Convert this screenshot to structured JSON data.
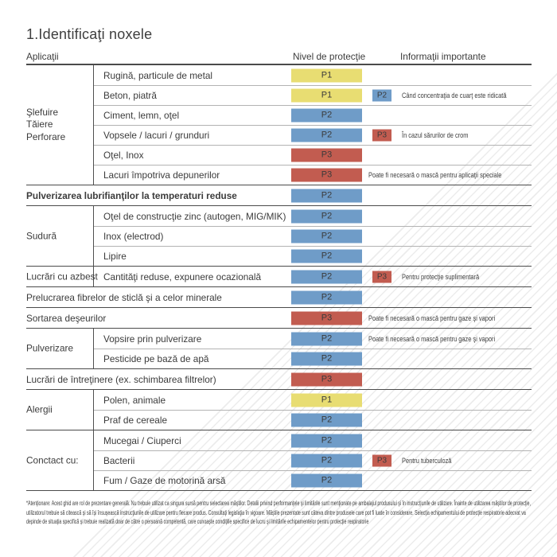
{
  "page": {
    "title": "1.Identificaţi noxele"
  },
  "columns": {
    "applications": "Aplicaţii",
    "protection": "Nivel de protecţie",
    "info": "Informaţii importante"
  },
  "colors": {
    "p1": "#e8dd72",
    "p2": "#6f9cc8",
    "p3": "#c25c50",
    "rule_heavy": "#4b4b4b",
    "rule_light": "#b3b3b3"
  },
  "sections": [
    {
      "type": "group",
      "label": "Şlefuire\nTăiere\nPerforare",
      "rows": [
        {
          "item": "Rugină, particule de metal",
          "badge": {
            "label": "P1",
            "color": "p1"
          }
        },
        {
          "item": "Beton, piatră",
          "badge": {
            "label": "P1",
            "color": "p1"
          },
          "badge2": {
            "label": "P2",
            "color": "p2"
          },
          "info": "Când concentraţia de cuarţ este ridicată"
        },
        {
          "item": "Ciment, lemn, oţel",
          "badge": {
            "label": "P2",
            "color": "p2"
          }
        },
        {
          "item": "Vopsele / lacuri / grunduri",
          "badge": {
            "label": "P2",
            "color": "p2"
          },
          "badge2": {
            "label": "P3",
            "color": "p3"
          },
          "info": "În cazul sărurilor de crom"
        },
        {
          "item": "Oţel, Inox",
          "badge": {
            "label": "P3",
            "color": "p3"
          }
        },
        {
          "item": "Lacuri împotriva depunerilor",
          "badge": {
            "label": "P3",
            "color": "p3"
          },
          "info": "Poate fi necesară o mască pentru aplicaţii speciale"
        }
      ]
    },
    {
      "type": "full",
      "bold": true,
      "rows": [
        {
          "item": "Pulverizarea lubrifianţilor la temperaturi reduse",
          "badge": {
            "label": "P2",
            "color": "p2"
          }
        }
      ]
    },
    {
      "type": "group",
      "label": "Sudură",
      "rows": [
        {
          "item": "Oţel de construcţie zinc (autogen, MIG/MIK)",
          "badge": {
            "label": "P2",
            "color": "p2"
          }
        },
        {
          "item": "Inox (electrod)",
          "badge": {
            "label": "P2",
            "color": "p2"
          }
        },
        {
          "item": "Lipire",
          "badge": {
            "label": "P2",
            "color": "p2"
          }
        }
      ]
    },
    {
      "type": "group",
      "label": "Lucrări cu azbest",
      "rows": [
        {
          "item": "Cantităţi reduse, expunere ocazională",
          "badge": {
            "label": "P2",
            "color": "p2"
          },
          "badge2": {
            "label": "P3",
            "color": "p3"
          },
          "info": "Pentru protecţie suplimentară"
        }
      ]
    },
    {
      "type": "full",
      "rows": [
        {
          "item": "Prelucrarea fibrelor de sticlă şi a celor minerale",
          "badge": {
            "label": "P2",
            "color": "p2"
          }
        }
      ]
    },
    {
      "type": "full",
      "rows": [
        {
          "item": "Sortarea deşeurilor",
          "badge": {
            "label": "P3",
            "color": "p3"
          },
          "info": "Poate fi necesară o mască pentru gaze şi vapori"
        }
      ]
    },
    {
      "type": "group",
      "label": "Pulverizare",
      "rows": [
        {
          "item": "Vopsire prin pulverizare",
          "badge": {
            "label": "P2",
            "color": "p2"
          },
          "info": "Poate fi necesară o mască pentru gaze şi vapori"
        },
        {
          "item": "Pesticide pe bază de apă",
          "badge": {
            "label": "P2",
            "color": "p2"
          }
        }
      ]
    },
    {
      "type": "full",
      "rows": [
        {
          "item": "Lucrări de întreţinere (ex. schimbarea filtrelor)",
          "badge": {
            "label": "P3",
            "color": "p3"
          }
        }
      ]
    },
    {
      "type": "group",
      "label": "Alergii",
      "rows": [
        {
          "item": "Polen, animale",
          "badge": {
            "label": "P1",
            "color": "p1"
          }
        },
        {
          "item": "Praf de cereale",
          "badge": {
            "label": "P2",
            "color": "p2"
          }
        }
      ]
    },
    {
      "type": "group",
      "label": "Conctact cu:",
      "rows": [
        {
          "item": "Mucegai / Ciuperci",
          "badge": {
            "label": "P2",
            "color": "p2"
          }
        },
        {
          "item": "Bacterii",
          "badge": {
            "label": "P2",
            "color": "p2"
          },
          "badge2": {
            "label": "P3",
            "color": "p3"
          },
          "info": "Pentru tuberculoză"
        },
        {
          "item": "Fum / Gaze de motorină arsă",
          "badge": {
            "label": "P2",
            "color": "p2"
          }
        }
      ]
    }
  ],
  "footnote": "*Atenţionare: Acest ghid are rol de prezentare generală. Nu trebuie utilizat ca singura sursă pentru selectarea măştilor. Detalii privind performanţele şi limitările sunt menţionate pe ambalajul produsului şi în instrucţiunile de utilizare. Înainte de utilizarea măştilor de protecţie, utilizatorul trebuie să citească şi să îşi însuşească instrucţiunile de utilizare pentru fiecare produs. Consultaţi legislaţia în vigoare. Măştile prezentate sunt câteva dintre produsele care pot fi luate în considerare. Selecţia echipamentului de protecţie respiratorie adecvat va depinde de situaţia specifică şi trebuie realizată doar de către o persoană competentă, care cunoaşte condiţiile specifice de lucru şi limitările echipamentelor pentru protecţie respiratorie"
}
